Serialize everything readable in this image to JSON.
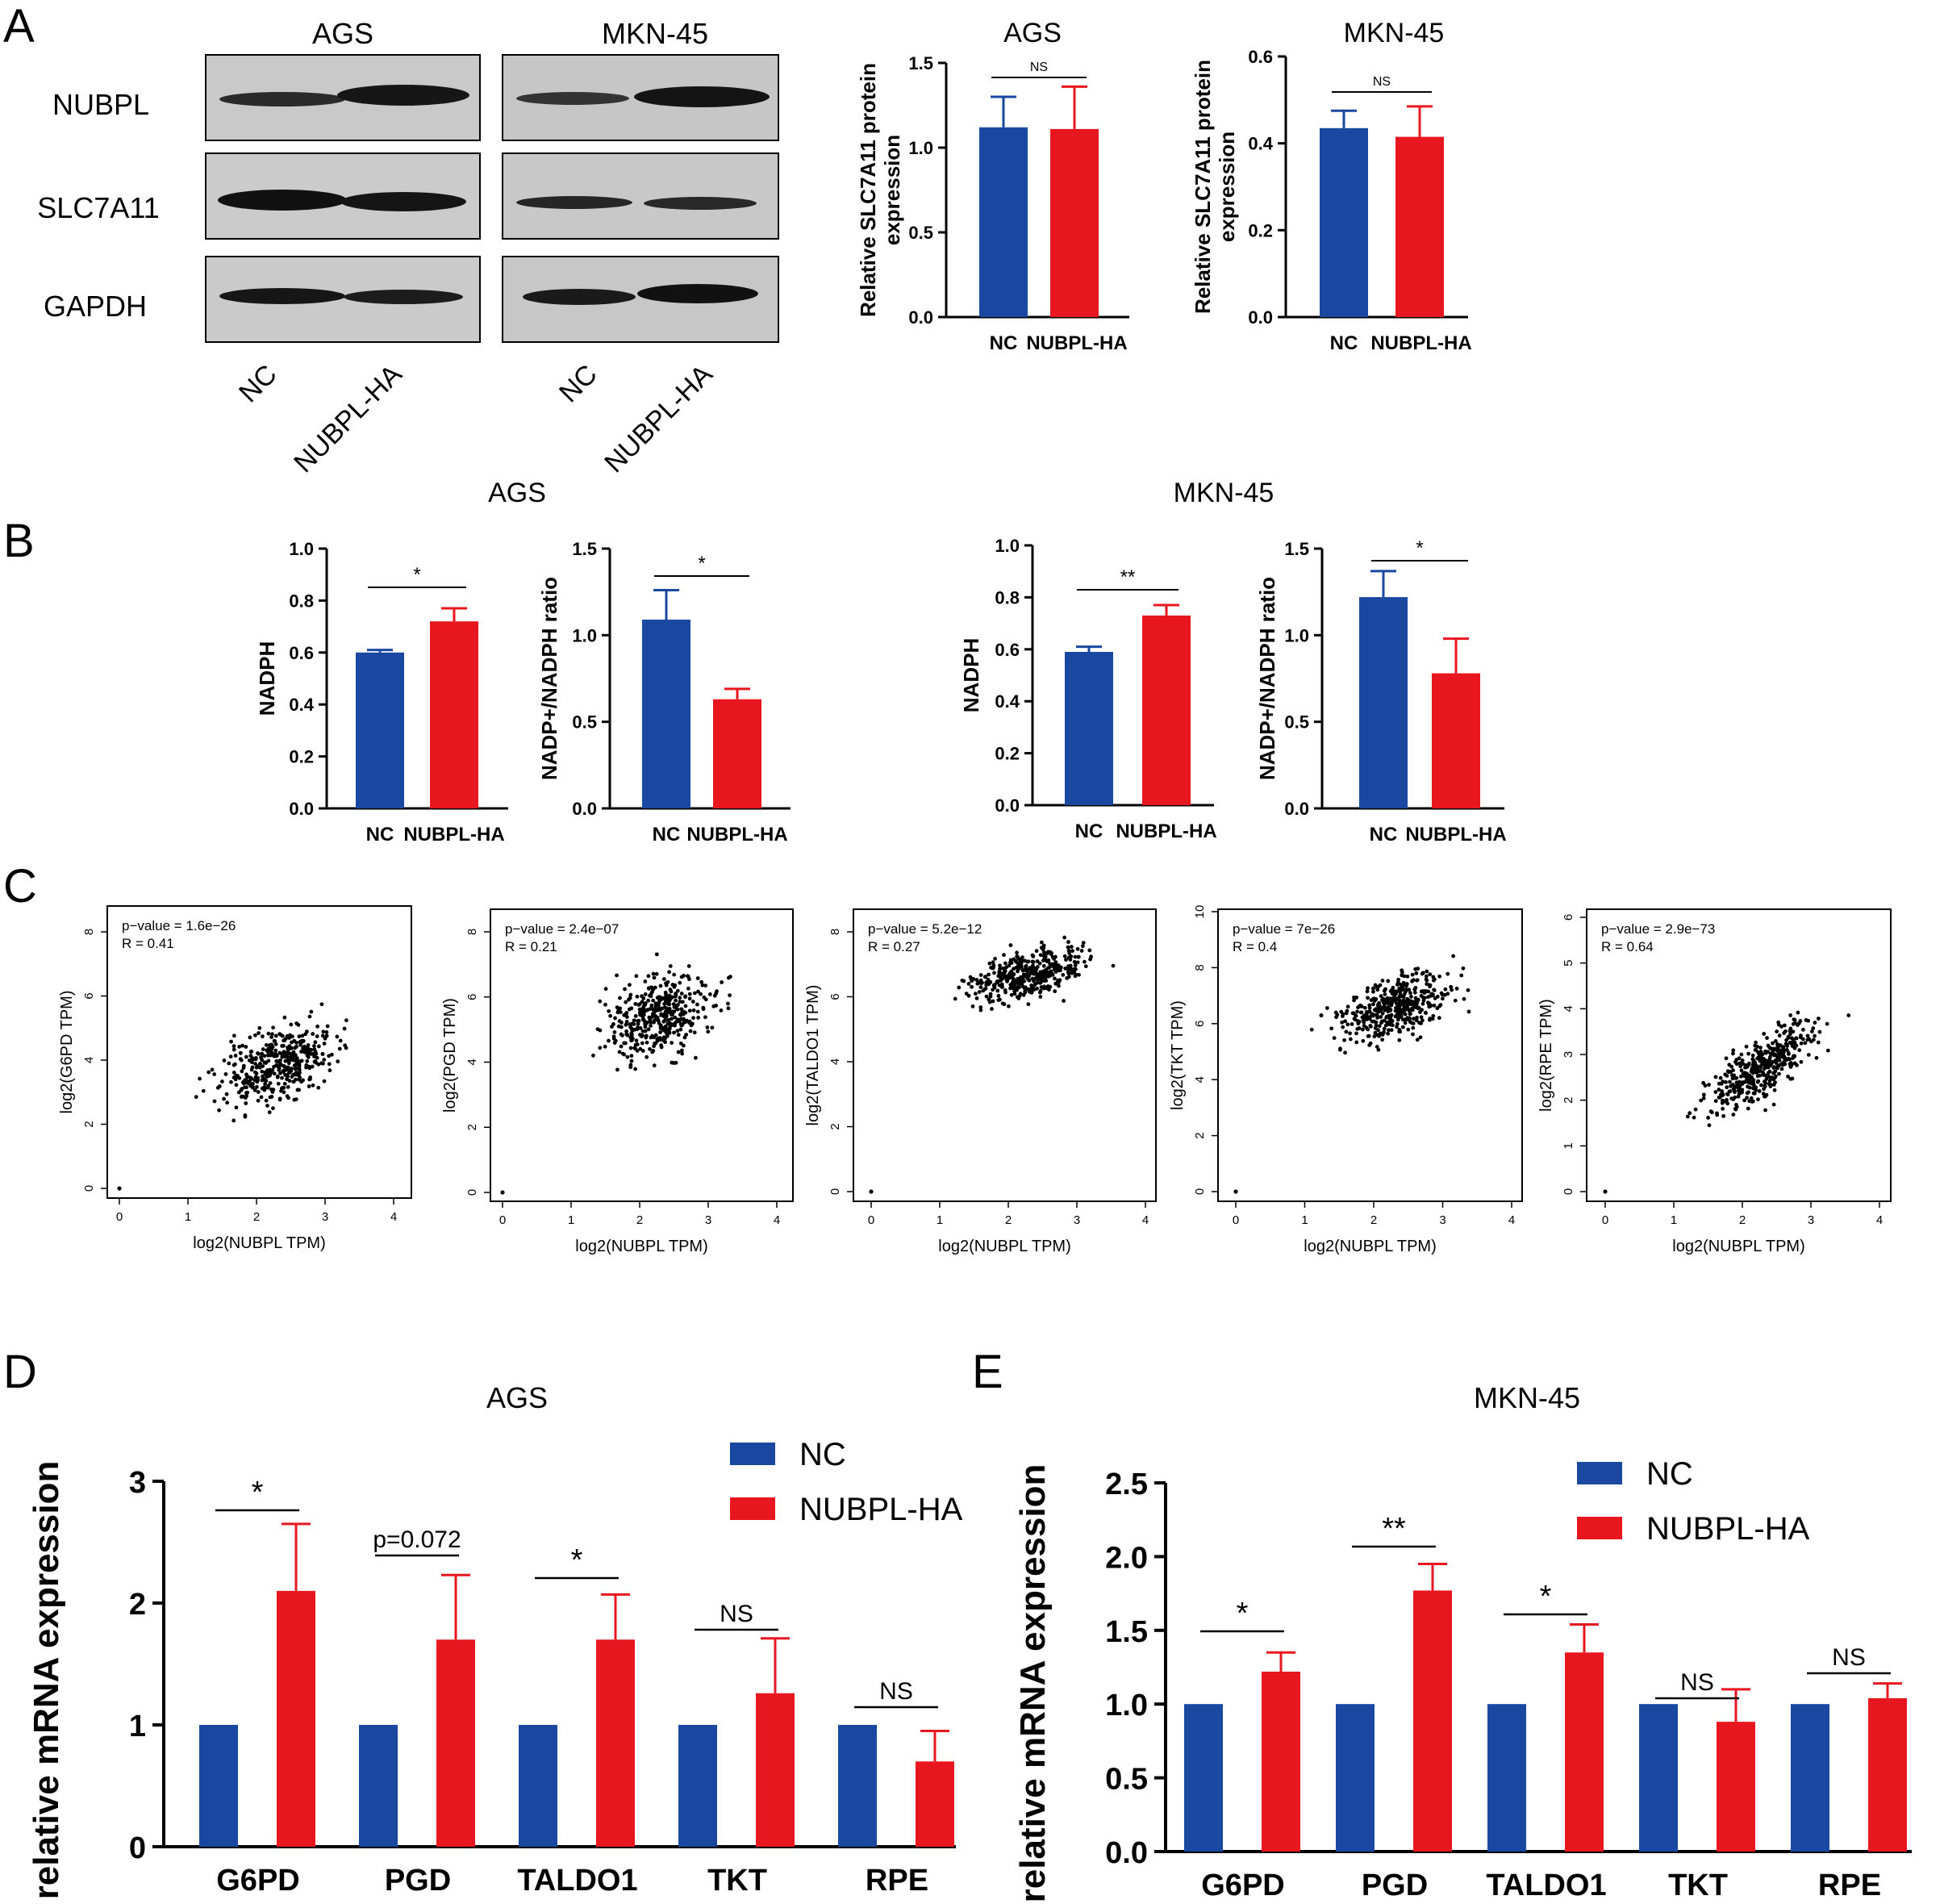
{
  "panels": {
    "A": "A",
    "B": "B",
    "C": "C",
    "D": "D",
    "E": "E"
  },
  "colors": {
    "nc": "#1a47a0",
    "ha": "#e8171f",
    "axis": "#000000"
  },
  "western_blot": {
    "cell_lines": [
      "AGS",
      "MKN-45"
    ],
    "rows": [
      "NUBPL",
      "SLC7A11",
      "GAPDH"
    ],
    "lanes": [
      "NC",
      "NUBPL-HA",
      "NC",
      "NUBPL-HA"
    ]
  },
  "chart_data": [
    {
      "id": "A1",
      "type": "bar",
      "title": "AGS",
      "categories": [
        "NC",
        "NUBPL-HA"
      ],
      "values": [
        1.12,
        1.11
      ],
      "errors": [
        0.18,
        0.25
      ],
      "ylabel": "Relative SLC7A11 protein expression",
      "ylim": [
        0,
        1.5
      ],
      "yticks": [
        "0.0",
        "0.5",
        "1.0",
        "1.5"
      ],
      "sig": "NS"
    },
    {
      "id": "A2",
      "type": "bar",
      "title": "MKN-45",
      "categories": [
        "NC",
        "NUBPL-HA"
      ],
      "values": [
        0.435,
        0.415
      ],
      "errors": [
        0.04,
        0.07
      ],
      "ylabel": "Relative SLC7A11 protein expression",
      "ylim": [
        0,
        0.6
      ],
      "yticks": [
        "0.0",
        "0.2",
        "0.4",
        "0.6"
      ],
      "sig": "NS"
    },
    {
      "id": "B1",
      "type": "bar",
      "title": "AGS",
      "categories": [
        "NC",
        "NUBPL-HA"
      ],
      "values": [
        0.6,
        0.72
      ],
      "errors": [
        0.01,
        0.05
      ],
      "ylabel": "NADPH",
      "ylim": [
        0,
        1.0
      ],
      "yticks": [
        "0.0",
        "0.2",
        "0.4",
        "0.6",
        "0.8",
        "1.0"
      ],
      "sig": "*"
    },
    {
      "id": "B2",
      "type": "bar",
      "title": "",
      "categories": [
        "NC",
        "NUBPL-HA"
      ],
      "values": [
        1.09,
        0.63
      ],
      "errors": [
        0.17,
        0.06
      ],
      "ylabel": "NADP+/NADPH ratio",
      "ylim": [
        0,
        1.5
      ],
      "yticks": [
        "0.0",
        "0.5",
        "1.0",
        "1.5"
      ],
      "sig": "*"
    },
    {
      "id": "B3",
      "type": "bar",
      "title": "MKN-45",
      "categories": [
        "NC",
        "NUBPL-HA"
      ],
      "values": [
        0.59,
        0.73
      ],
      "errors": [
        0.02,
        0.04
      ],
      "ylabel": "NADPH",
      "ylim": [
        0,
        1.0
      ],
      "yticks": [
        "0.0",
        "0.2",
        "0.4",
        "0.6",
        "0.8",
        "1.0"
      ],
      "sig": "**"
    },
    {
      "id": "B4",
      "type": "bar",
      "title": "",
      "categories": [
        "NC",
        "NUBPL-HA"
      ],
      "values": [
        1.22,
        0.78
      ],
      "errors": [
        0.15,
        0.2
      ],
      "ylabel": "NADP+/NADPH ratio",
      "ylim": [
        0,
        1.5
      ],
      "yticks": [
        "0.0",
        "0.5",
        "1.0",
        "1.5"
      ],
      "sig": "*"
    },
    {
      "id": "C1",
      "type": "scatter",
      "xlabel": "log2(NUBPL TPM)",
      "ylabel": "log2(G6PD TPM)",
      "pvalue": "p−value = 1.6e−26",
      "r": "R = 0.41",
      "xlim": [
        0,
        4
      ],
      "ylim": [
        0,
        8
      ],
      "yticks": [
        "0",
        "2",
        "4",
        "6",
        "8"
      ],
      "xticks": [
        "0",
        "1",
        "2",
        "3",
        "4"
      ],
      "slope": 0.8,
      "intercept": 2.8,
      "noise": 0.75
    },
    {
      "id": "C2",
      "type": "scatter",
      "xlabel": "log2(NUBPL TPM)",
      "ylabel": "log2(PGD TPM)",
      "pvalue": "p−value = 2.4e−07",
      "r": "R = 0.21",
      "xlim": [
        0,
        4
      ],
      "ylim": [
        0,
        8
      ],
      "yticks": [
        "0",
        "2",
        "4",
        "6",
        "8"
      ],
      "xticks": [
        "0",
        "1",
        "2",
        "3",
        "4"
      ],
      "slope": 0.4,
      "intercept": 4.9,
      "noise": 0.9
    },
    {
      "id": "C3",
      "type": "scatter",
      "xlabel": "log2(NUBPL TPM)",
      "ylabel": "log2(TALDO1 TPM)",
      "pvalue": "p−value = 5.2e−12",
      "r": "R = 0.27",
      "xlim": [
        0,
        4
      ],
      "ylim": [
        0,
        8
      ],
      "yticks": [
        "0",
        "2",
        "4",
        "6",
        "8"
      ],
      "xticks": [
        "0",
        "1",
        "2",
        "3",
        "4"
      ],
      "slope": 0.45,
      "intercept": 6.1,
      "noise": 0.55
    },
    {
      "id": "C4",
      "type": "scatter",
      "xlabel": "log2(NUBPL TPM)",
      "ylabel": "log2(TKT TPM)",
      "pvalue": "p−value = 7e−26",
      "r": "R = 0.4",
      "xlim": [
        0,
        4
      ],
      "ylim": [
        0,
        10
      ],
      "yticks": [
        "0",
        "2",
        "4",
        "6",
        "8",
        "10"
      ],
      "xticks": [
        "0",
        "1",
        "2",
        "3",
        "4"
      ],
      "slope": 0.75,
      "intercept": 5.6,
      "noise": 0.7
    },
    {
      "id": "C5",
      "type": "scatter",
      "xlabel": "log2(NUBPL TPM)",
      "ylabel": "log2(RPE TPM)",
      "pvalue": "p−value = 2.9e−73",
      "r": "R = 0.64",
      "xlim": [
        0,
        4
      ],
      "ylim": [
        0,
        6
      ],
      "yticks": [
        "0",
        "1",
        "2",
        "3",
        "4",
        "5",
        "6"
      ],
      "xticks": [
        "0",
        "1",
        "2",
        "3",
        "4"
      ],
      "slope": 0.9,
      "intercept": 1.6,
      "noise": 0.45
    },
    {
      "id": "D",
      "type": "bar",
      "title": "AGS",
      "categories": [
        "G6PD",
        "PGD",
        "TALDO1",
        "TKT",
        "RPE"
      ],
      "series": [
        {
          "name": "NC",
          "values": [
            1,
            1,
            1,
            1,
            1
          ],
          "errors": [
            0,
            0,
            0,
            0,
            0
          ]
        },
        {
          "name": "NUBPL-HA",
          "values": [
            2.1,
            1.7,
            1.7,
            1.26,
            0.7
          ],
          "errors": [
            0.55,
            0.53,
            0.37,
            0.45,
            0.25
          ]
        }
      ],
      "ylabel": "relative  mRNA expression",
      "ylim": [
        0,
        3
      ],
      "yticks": [
        "0",
        "1",
        "2",
        "3"
      ],
      "sig": [
        "*",
        "p=0.072",
        "*",
        "NS",
        "NS"
      ]
    },
    {
      "id": "E",
      "type": "bar",
      "title": "MKN-45",
      "categories": [
        "G6PD",
        "PGD",
        "TALDO1",
        "TKT",
        "RPE"
      ],
      "series": [
        {
          "name": "NC",
          "values": [
            1,
            1,
            1,
            1,
            1
          ],
          "errors": [
            0,
            0,
            0,
            0,
            0
          ]
        },
        {
          "name": "NUBPL-HA",
          "values": [
            1.22,
            1.77,
            1.35,
            0.88,
            1.04
          ],
          "errors": [
            0.13,
            0.18,
            0.19,
            0.22,
            0.1
          ]
        }
      ],
      "ylabel": "relative  mRNA expression",
      "ylim": [
        0,
        2.5
      ],
      "yticks": [
        "0.0",
        "0.5",
        "1.0",
        "1.5",
        "2.0",
        "2.5"
      ],
      "sig": [
        "*",
        "**",
        "*",
        "NS",
        "NS"
      ]
    }
  ]
}
